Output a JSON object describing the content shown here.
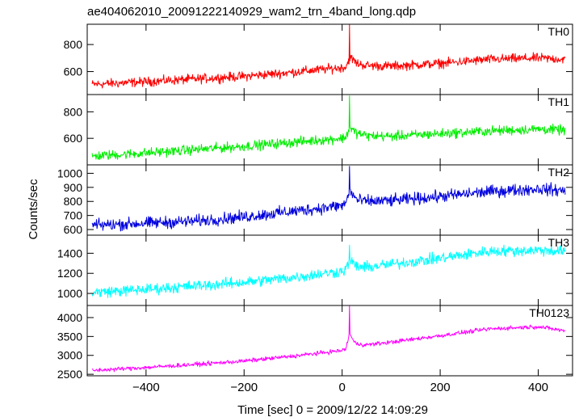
{
  "title": "ae404062010_20091222140929_wam2_trn_4band_long.qdp",
  "ylabel": "Counts/sec",
  "xlabel": "Time [sec] 0 = 2009/12/22 14:09:29",
  "chart_data": {
    "type": "line",
    "title": "ae404062010_20091222140929_wam2_trn_4band_long.qdp",
    "xlabel": "Time [sec] 0 = 2009/12/22 14:09:29",
    "ylabel": "Counts/sec",
    "xlim": [
      -520,
      470
    ],
    "xticks": [
      -400,
      -200,
      0,
      200,
      400
    ],
    "xticklabels": [
      "−400",
      "−200",
      "0",
      "200",
      "400"
    ],
    "panels": [
      {
        "name": "TH0",
        "color": "#ff0000",
        "ylim": [
          430,
          950
        ],
        "yticks": [
          600,
          800
        ],
        "series_profile": {
          "x": [
            -510,
            -400,
            -300,
            -200,
            -100,
            0,
            8,
            15,
            22,
            30,
            50,
            100,
            200,
            300,
            400,
            455
          ],
          "y": [
            505,
            525,
            545,
            565,
            595,
            630,
            635,
            700,
            690,
            660,
            645,
            640,
            660,
            690,
            700,
            690
          ]
        },
        "noise_amplitude": 28,
        "spike": {
          "x": 15,
          "y": 945
        }
      },
      {
        "name": "TH1",
        "color": "#00ee00",
        "ylim": [
          400,
          930
        ],
        "yticks": [
          600,
          800
        ],
        "series_profile": {
          "x": [
            -510,
            -400,
            -300,
            -200,
            -100,
            0,
            8,
            15,
            22,
            30,
            50,
            100,
            200,
            300,
            400,
            455
          ],
          "y": [
            465,
            490,
            515,
            540,
            570,
            600,
            610,
            680,
            660,
            640,
            620,
            615,
            635,
            655,
            670,
            660
          ]
        },
        "noise_amplitude": 30,
        "spike": {
          "x": 15,
          "y": 920
        }
      },
      {
        "name": "TH2",
        "color": "#0000dd",
        "ylim": [
          560,
          1060
        ],
        "yticks": [
          600,
          700,
          800,
          900,
          1000
        ],
        "series_profile": {
          "x": [
            -510,
            -400,
            -300,
            -200,
            -100,
            0,
            8,
            15,
            22,
            30,
            50,
            100,
            200,
            300,
            400,
            455
          ],
          "y": [
            630,
            645,
            660,
            690,
            730,
            770,
            790,
            880,
            850,
            810,
            800,
            805,
            835,
            870,
            890,
            875
          ]
        },
        "noise_amplitude": 35,
        "spike": {
          "x": 15,
          "y": 1050
        }
      },
      {
        "name": "TH3",
        "color": "#00ffff",
        "ylim": [
          880,
          1580
        ],
        "yticks": [
          1000,
          1200,
          1400
        ],
        "series_profile": {
          "x": [
            -510,
            -400,
            -300,
            -200,
            -100,
            0,
            8,
            15,
            22,
            30,
            50,
            100,
            200,
            300,
            400,
            455
          ],
          "y": [
            1010,
            1040,
            1075,
            1110,
            1160,
            1220,
            1240,
            1330,
            1300,
            1270,
            1260,
            1290,
            1350,
            1420,
            1430,
            1420
          ]
        },
        "noise_amplitude": 45,
        "spike": {
          "x": 15,
          "y": 1480
        }
      },
      {
        "name": "TH0123",
        "color": "#ff00ff",
        "ylim": [
          2460,
          4320
        ],
        "yticks": [
          2500,
          3000,
          3500,
          4000
        ],
        "series_profile": {
          "x": [
            -510,
            -400,
            -300,
            -200,
            -100,
            0,
            8,
            15,
            22,
            30,
            50,
            100,
            200,
            300,
            400,
            455
          ],
          "y": [
            2600,
            2680,
            2760,
            2850,
            2980,
            3130,
            3180,
            3600,
            3400,
            3300,
            3280,
            3350,
            3520,
            3700,
            3760,
            3650
          ]
        },
        "noise_amplitude": 45,
        "spike": {
          "x": 15,
          "y": 4300
        }
      }
    ]
  }
}
